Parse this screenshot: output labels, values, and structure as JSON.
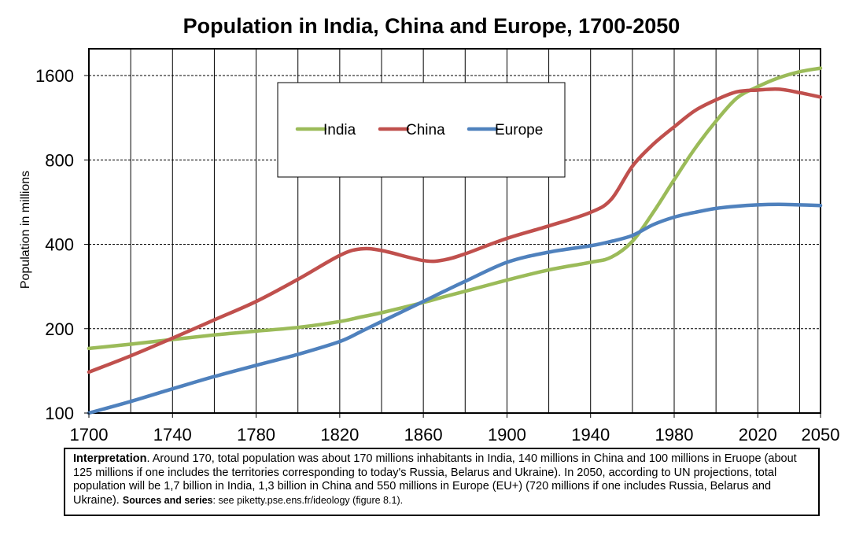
{
  "chart_data": {
    "type": "line",
    "title": "Population in India, China and Europe, 1700-2050",
    "xlabel": "",
    "ylabel": "Population in millions",
    "y_scale": "log2",
    "xlim": [
      1700,
      2050
    ],
    "ylim": [
      100,
      2200
    ],
    "x_ticks": [
      1700,
      1740,
      1780,
      1820,
      1860,
      1900,
      1940,
      1980,
      2020,
      2050
    ],
    "y_ticks": [
      100,
      200,
      400,
      800,
      1600
    ],
    "grid": "on",
    "legend_position": "top-left inside",
    "x": [
      1700,
      1720,
      1740,
      1760,
      1780,
      1800,
      1820,
      1830,
      1840,
      1860,
      1870,
      1880,
      1900,
      1920,
      1940,
      1950,
      1960,
      1970,
      1980,
      1990,
      2000,
      2010,
      2020,
      2030,
      2040,
      2050
    ],
    "series": [
      {
        "name": "India",
        "color": "#9BBB59",
        "values": [
          170,
          176,
          183,
          190,
          196,
          202,
          212,
          220,
          228,
          248,
          260,
          272,
          298,
          324,
          345,
          360,
          410,
          520,
          680,
          880,
          1100,
          1330,
          1460,
          1570,
          1650,
          1700
        ]
      },
      {
        "name": "China",
        "color": "#C0504D",
        "values": [
          140,
          160,
          185,
          215,
          250,
          300,
          365,
          385,
          380,
          350,
          352,
          370,
          420,
          465,
          520,
          580,
          760,
          910,
          1050,
          1200,
          1310,
          1400,
          1420,
          1430,
          1390,
          1340
        ]
      },
      {
        "name": "Europe",
        "color": "#4F81BD",
        "values": [
          100,
          110,
          122,
          135,
          148,
          162,
          180,
          195,
          212,
          250,
          272,
          295,
          345,
          375,
          395,
          410,
          430,
          470,
          500,
          520,
          537,
          547,
          553,
          555,
          553,
          550
        ]
      }
    ]
  },
  "interpretation": {
    "label": "Interpretation",
    "body": ". Around 170, total population was about 170 millions inhabitants in India, 140 millions in China and 100 millions in Eruope (about 125 millions if one includes the territories corresponding to today's Russia, Belarus and Ukraine). In 2050, according to UN projections, total population will be 1,7 billion in India, 1,3 billion in China and 550 millions in Europe (EU+) (720 millions if one includes Russia, Belarus and Ukraine).",
    "sources_label": "Sources and series",
    "sources_text": ": see piketty.pse.ens.fr/ideology (figure 8.1)."
  }
}
